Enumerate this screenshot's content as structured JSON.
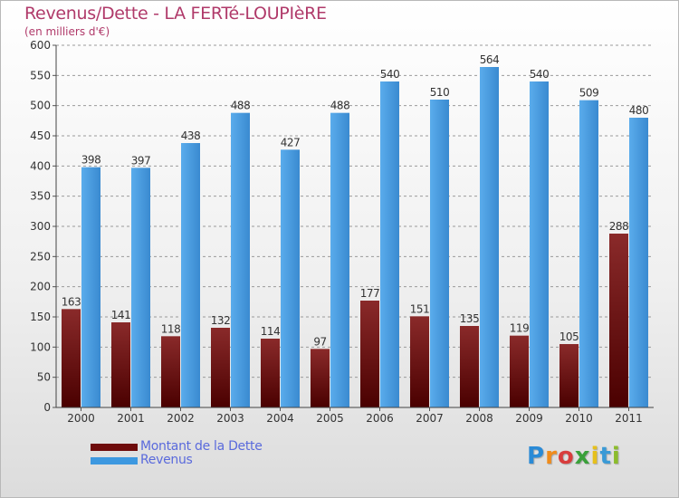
{
  "header": {
    "title": "Revenus/Dette - LA FERTé-LOUPIèRE",
    "subtitle": "(en milliers d'€)"
  },
  "legend": {
    "items": [
      {
        "label": "Montant de la Dette",
        "color": "#6e0b0b"
      },
      {
        "label": "Revenus",
        "color": "#3d98e0"
      }
    ]
  },
  "logo": {
    "letters": [
      {
        "char": "P",
        "color": "#2a8ad6"
      },
      {
        "char": "r",
        "color": "#f08c1c"
      },
      {
        "char": "o",
        "color": "#d83c3c"
      },
      {
        "char": "x",
        "color": "#3aa03a"
      },
      {
        "char": "i",
        "color": "#e6c01c"
      },
      {
        "char": "t",
        "color": "#3a9ad6"
      },
      {
        "char": "i",
        "color": "#8cbc2c"
      }
    ]
  },
  "chart_data": {
    "type": "bar",
    "categories": [
      "2000",
      "2001",
      "2002",
      "2003",
      "2004",
      "2005",
      "2006",
      "2007",
      "2008",
      "2009",
      "2010",
      "2011"
    ],
    "series": [
      {
        "name": "Montant de la Dette",
        "color": "#6e0b0b",
        "values": [
          163,
          141,
          118,
          132,
          114,
          97,
          177,
          151,
          135,
          119,
          105,
          288
        ]
      },
      {
        "name": "Revenus",
        "color": "#3d98e0",
        "values": [
          398,
          397,
          438,
          488,
          427,
          488,
          540,
          510,
          564,
          540,
          509,
          480
        ]
      }
    ],
    "ylim": [
      0,
      600
    ],
    "yticks": [
      0,
      50,
      100,
      150,
      200,
      250,
      300,
      350,
      400,
      450,
      500,
      550,
      600
    ],
    "grid": true,
    "legend_position": "bottom-left"
  }
}
